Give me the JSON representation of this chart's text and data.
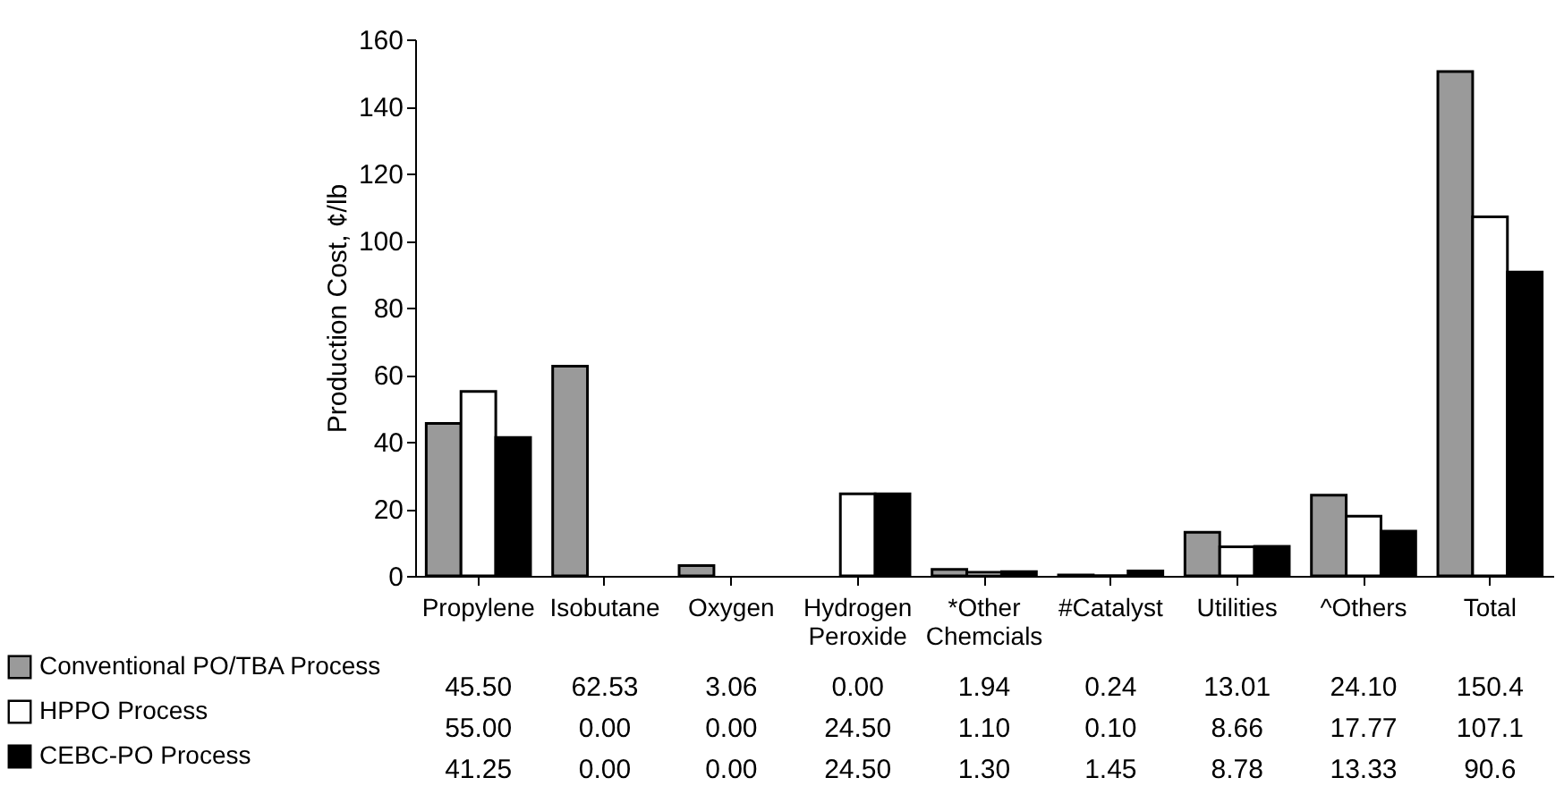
{
  "chart_data": {
    "type": "bar",
    "ylabel": "Production Cost, ¢/lb",
    "categories": [
      "Propylene",
      "Isobutane",
      "Oxygen",
      "Hydrogen Peroxide",
      "*Other Chemcials",
      "#Catalyst",
      "Utilities",
      "^Others",
      "Total"
    ],
    "series": [
      {
        "name": "Conventional PO/TBA Process",
        "color": "#9a9a9a",
        "values": [
          45.5,
          62.53,
          3.06,
          0,
          1.94,
          0.24,
          13.01,
          24.1,
          150.4
        ],
        "value_labels": [
          "45.50",
          "62.53",
          "3.06",
          "0.00",
          "1.94",
          "0.24",
          "13.01",
          "24.10",
          "150.4"
        ]
      },
      {
        "name": "HPPO Process",
        "color": "#ffffff",
        "values": [
          55,
          0,
          0,
          24.5,
          1.1,
          0.1,
          8.66,
          17.77,
          107.1
        ],
        "value_labels": [
          "55.00",
          "0.00",
          "0.00",
          "24.50",
          "1.10",
          "0.10",
          "8.66",
          "17.77",
          "107.1"
        ]
      },
      {
        "name": "CEBC-PO Process",
        "color": "#000000",
        "values": [
          41.25,
          0,
          0,
          24.5,
          1.3,
          1.45,
          8.78,
          13.33,
          90.6
        ],
        "value_labels": [
          "41.25",
          "0.00",
          "0.00",
          "24.50",
          "1.30",
          "1.45",
          "8.78",
          "13.33",
          "90.6"
        ]
      }
    ],
    "ylim": [
      0,
      160
    ],
    "yticks": [
      0,
      20,
      40,
      60,
      80,
      100,
      120,
      140,
      160
    ],
    "legend": "bottom left"
  }
}
